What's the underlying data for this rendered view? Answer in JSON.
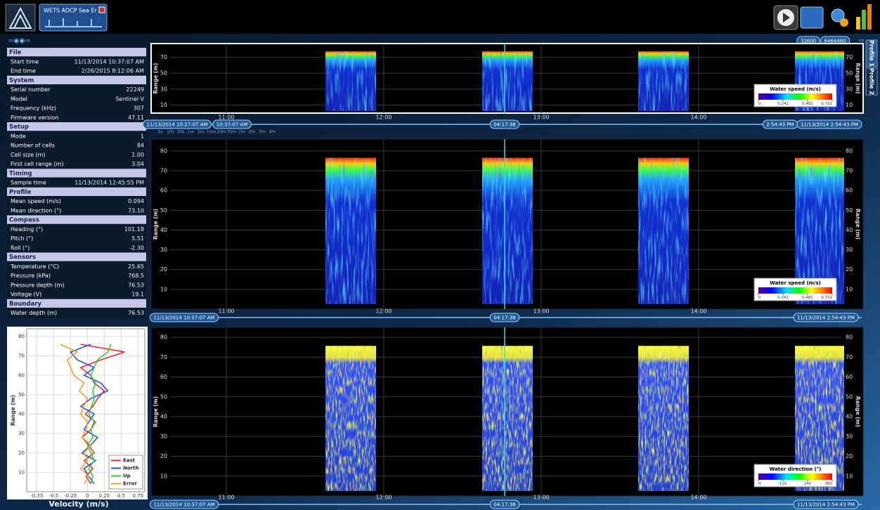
{
  "app": {
    "tab_title": "WETS ADCP Sea Er",
    "profile_tabs": [
      "Profile 1",
      "Profile 2"
    ],
    "ensemble_counter": [
      "32600",
      "6464480"
    ]
  },
  "info_panel": {
    "sections": [
      {
        "title": "File",
        "rows": [
          [
            "Start time",
            "11/13/2014 10:37:07 AM"
          ],
          [
            "End time",
            "2/26/2015 8:12:06 AM"
          ]
        ]
      },
      {
        "title": "System",
        "rows": [
          [
            "Serial number",
            "22249"
          ],
          [
            "Model",
            "Sentinel V"
          ],
          [
            "Frequency (kHz)",
            "307"
          ],
          [
            "Firmware version",
            "47.11"
          ]
        ]
      },
      {
        "title": "Setup",
        "rows": [
          [
            "Mode",
            "1"
          ],
          [
            "Number of cells",
            "84"
          ],
          [
            "Cell size (m)",
            "1.00"
          ],
          [
            "First cell range (m)",
            "3.04"
          ]
        ]
      },
      {
        "title": "Timing",
        "rows": [
          [
            "Sample time",
            "11/13/2014 12:45:55 PM"
          ]
        ]
      },
      {
        "title": "Profile",
        "rows": [
          [
            "Mean speed (m/s)",
            "0.094"
          ],
          [
            "Mean direction (°)",
            "73.10"
          ]
        ]
      },
      {
        "title": "Compass",
        "rows": [
          [
            "Heading (°)",
            "101.18"
          ],
          [
            "Pitch (°)",
            "5.51"
          ],
          [
            "Roll (°)",
            "-2.30"
          ]
        ]
      },
      {
        "title": "Sensors",
        "rows": [
          [
            "Temperature (°C)",
            "25.65"
          ],
          [
            "Pressure (kPa)",
            "768.5"
          ],
          [
            "Pressure depth (m)",
            "76.53"
          ],
          [
            "Voltage (V)",
            "19.1"
          ]
        ]
      },
      {
        "title": "Boundary",
        "rows": [
          [
            "Water depth (m)",
            "76.53"
          ]
        ]
      }
    ]
  },
  "chart_data": [
    {
      "type": "heatmap",
      "y_label": "Range (m)",
      "categories": [
        "11:00",
        "12:00",
        "13:00",
        "14:00"
      ],
      "ylim": [
        0,
        87
      ],
      "yticks": [
        10,
        30,
        50,
        70
      ],
      "grid": true,
      "palette": "speed",
      "colorbar": {
        "title": "Water speed (m/s)",
        "ticks": [
          0,
          0.241,
          0.481,
          0.722
        ]
      },
      "time_labels": [
        "11/13/2014 10:27:07 AM",
        "10:37:07 AM",
        "04:17:36",
        "2:54:43 PM",
        "11/13/2014 2:54:43 PM"
      ],
      "zoom_labels": [
        "5s",
        "10s",
        "30s",
        "1m",
        "5m",
        "10m",
        "20m",
        "30m",
        "1hr",
        "2hr",
        "3hr",
        "4hr"
      ]
    },
    {
      "type": "heatmap",
      "y_label": "Range (m)",
      "categories": [
        "11:00",
        "12:00",
        "13:00",
        "14:00"
      ],
      "ylim": [
        0,
        86
      ],
      "yticks": [
        10,
        20,
        30,
        40,
        50,
        60,
        70,
        80
      ],
      "grid": true,
      "palette": "speed",
      "colorbar": {
        "title": "Water speed (m/s)",
        "ticks": [
          0,
          0.241,
          0.481,
          0.722
        ]
      },
      "time_labels": [
        "11/13/2014 10:37:07 AM",
        "04:17:36",
        "11/13/2014 2:54:43 PM"
      ]
    },
    {
      "type": "heatmap",
      "y_label": "Range (m)",
      "categories": [
        "11:00",
        "12:00",
        "13:00",
        "14:00"
      ],
      "ylim": [
        0,
        85
      ],
      "yticks": [
        10,
        20,
        30,
        40,
        50,
        60,
        70,
        80
      ],
      "grid": true,
      "palette": "direction",
      "colorbar": {
        "title": "Water direction (°)",
        "ticks": [
          0,
          120,
          240,
          360
        ]
      },
      "time_labels": [
        "11/13/2014 10:37:07 AM",
        "04:17:36",
        "11/13/2014 2:54:43 PM"
      ]
    },
    {
      "type": "profile",
      "x_label": "Velocity (m/s)",
      "y_label": "Range (m)",
      "xlim": [
        -0.9,
        0.85
      ],
      "xticks": [
        -0.75,
        -0.5,
        -0.25,
        0,
        0.25,
        0.5,
        0.75
      ],
      "ylim": [
        0,
        84
      ],
      "yticks": [
        10,
        20,
        30,
        40,
        50,
        60,
        70,
        80
      ],
      "grid": true,
      "legend": "lower right",
      "y": [
        4,
        8,
        12,
        16,
        20,
        24,
        28,
        32,
        36,
        40,
        44,
        48,
        52,
        56,
        60,
        64,
        68,
        72,
        76
      ],
      "series": [
        {
          "name": "East",
          "color": "#e03030",
          "values": [
            0.05,
            -0.02,
            0.08,
            -0.05,
            0.1,
            0.02,
            -0.08,
            0.05,
            0.12,
            -0.03,
            0.08,
            0.15,
            0.25,
            0.1,
            0.05,
            -0.1,
            0.2,
            0.55,
            -0.1
          ]
        },
        {
          "name": "North",
          "color": "#2f4fe0",
          "values": [
            0.1,
            0.02,
            -0.05,
            0.12,
            -0.08,
            0.05,
            0.15,
            -0.05,
            0.02,
            0.1,
            -0.1,
            0.05,
            0.3,
            0.2,
            -0.05,
            0.1,
            -0.15,
            -0.25,
            0.05
          ]
        },
        {
          "name": "Up",
          "color": "#30d030",
          "values": [
            0.05,
            0.08,
            0.02,
            0.1,
            0.05,
            0,
            0.08,
            0.05,
            0.1,
            0.02,
            0.06,
            0.1,
            0.08,
            0.12,
            0.05,
            0.1,
            0.15,
            0.3,
            0.35
          ]
        },
        {
          "name": "Error",
          "color": "#f0a030",
          "values": [
            -0.05,
            0.02,
            -0.1,
            0,
            -0.05,
            0.05,
            -0.08,
            -0.02,
            0,
            -0.1,
            -0.05,
            0,
            -0.12,
            -0.05,
            -0.2,
            -0.25,
            -0.3,
            -0.15,
            -0.4
          ]
        }
      ]
    }
  ]
}
